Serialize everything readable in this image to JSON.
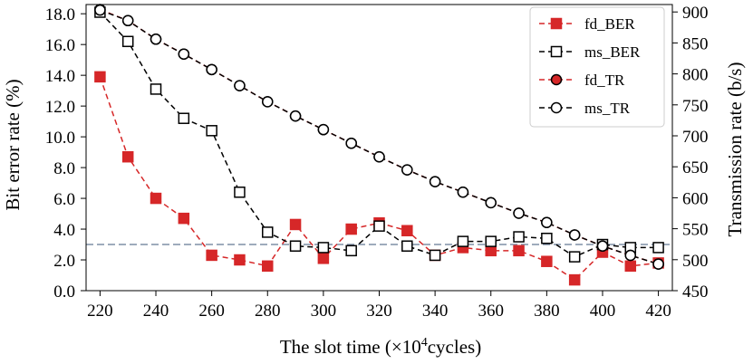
{
  "chart_data": {
    "type": "line",
    "xlabel_prefix": "The slot time (",
    "xlabel_times": "×10",
    "xlabel_exp": "4",
    "xlabel_suffix": "cycles)",
    "ylabel_left": "Bit error rate (%)",
    "ylabel_right": "Transmission rate (b/s)",
    "x": [
      220,
      230,
      240,
      250,
      260,
      270,
      280,
      290,
      300,
      310,
      320,
      330,
      340,
      350,
      360,
      370,
      380,
      390,
      400,
      410,
      420
    ],
    "xlim": [
      215,
      425
    ],
    "ylim_left": [
      0,
      18.6
    ],
    "ylim_right": [
      450,
      912
    ],
    "x_ticks": [
      "220",
      "240",
      "260",
      "280",
      "300",
      "320",
      "340",
      "360",
      "380",
      "400",
      "420"
    ],
    "y_ticks_left": [
      "0.0",
      "2.0",
      "4.0",
      "6.0",
      "8.0",
      "10.0",
      "12.0",
      "14.0",
      "16.0",
      "18.0"
    ],
    "y_ticks_right": [
      "450",
      "500",
      "550",
      "600",
      "650",
      "700",
      "750",
      "800",
      "850",
      "900"
    ],
    "reference_line": {
      "axis": "left",
      "value": 3.0,
      "color": "#7f8fa6"
    },
    "series": [
      {
        "name": "fd_BER",
        "axis": "left",
        "marker": "square-filled",
        "color": "#d62728",
        "values": [
          13.9,
          8.7,
          6.0,
          4.7,
          2.3,
          2.0,
          1.6,
          4.3,
          2.1,
          4.0,
          4.4,
          3.9,
          2.3,
          2.8,
          2.6,
          2.6,
          1.9,
          0.7,
          2.5,
          1.6,
          1.8
        ]
      },
      {
        "name": "ms_BER",
        "axis": "left",
        "marker": "square-open",
        "color": "#000000",
        "values": [
          18.1,
          16.2,
          13.1,
          11.2,
          10.4,
          6.4,
          3.8,
          2.9,
          2.8,
          2.6,
          4.2,
          2.9,
          2.3,
          3.2,
          3.2,
          3.5,
          3.4,
          2.2,
          3.0,
          2.8,
          2.8
        ]
      },
      {
        "name": "fd_TR",
        "axis": "right",
        "marker": "circle-filled",
        "color": "#d62728",
        "values": [
          904,
          886,
          856,
          832,
          807,
          781,
          755,
          732,
          710,
          688,
          666,
          645,
          626,
          609,
          592,
          575,
          560,
          540,
          522,
          507,
          493
        ]
      },
      {
        "name": "ms_TR",
        "axis": "right",
        "marker": "circle-open",
        "color": "#000000",
        "values": [
          903,
          886,
          856,
          832,
          807,
          781,
          755,
          732,
          710,
          688,
          666,
          645,
          626,
          609,
          592,
          575,
          560,
          540,
          522,
          507,
          493
        ]
      }
    ],
    "legend_position": "top-right"
  }
}
